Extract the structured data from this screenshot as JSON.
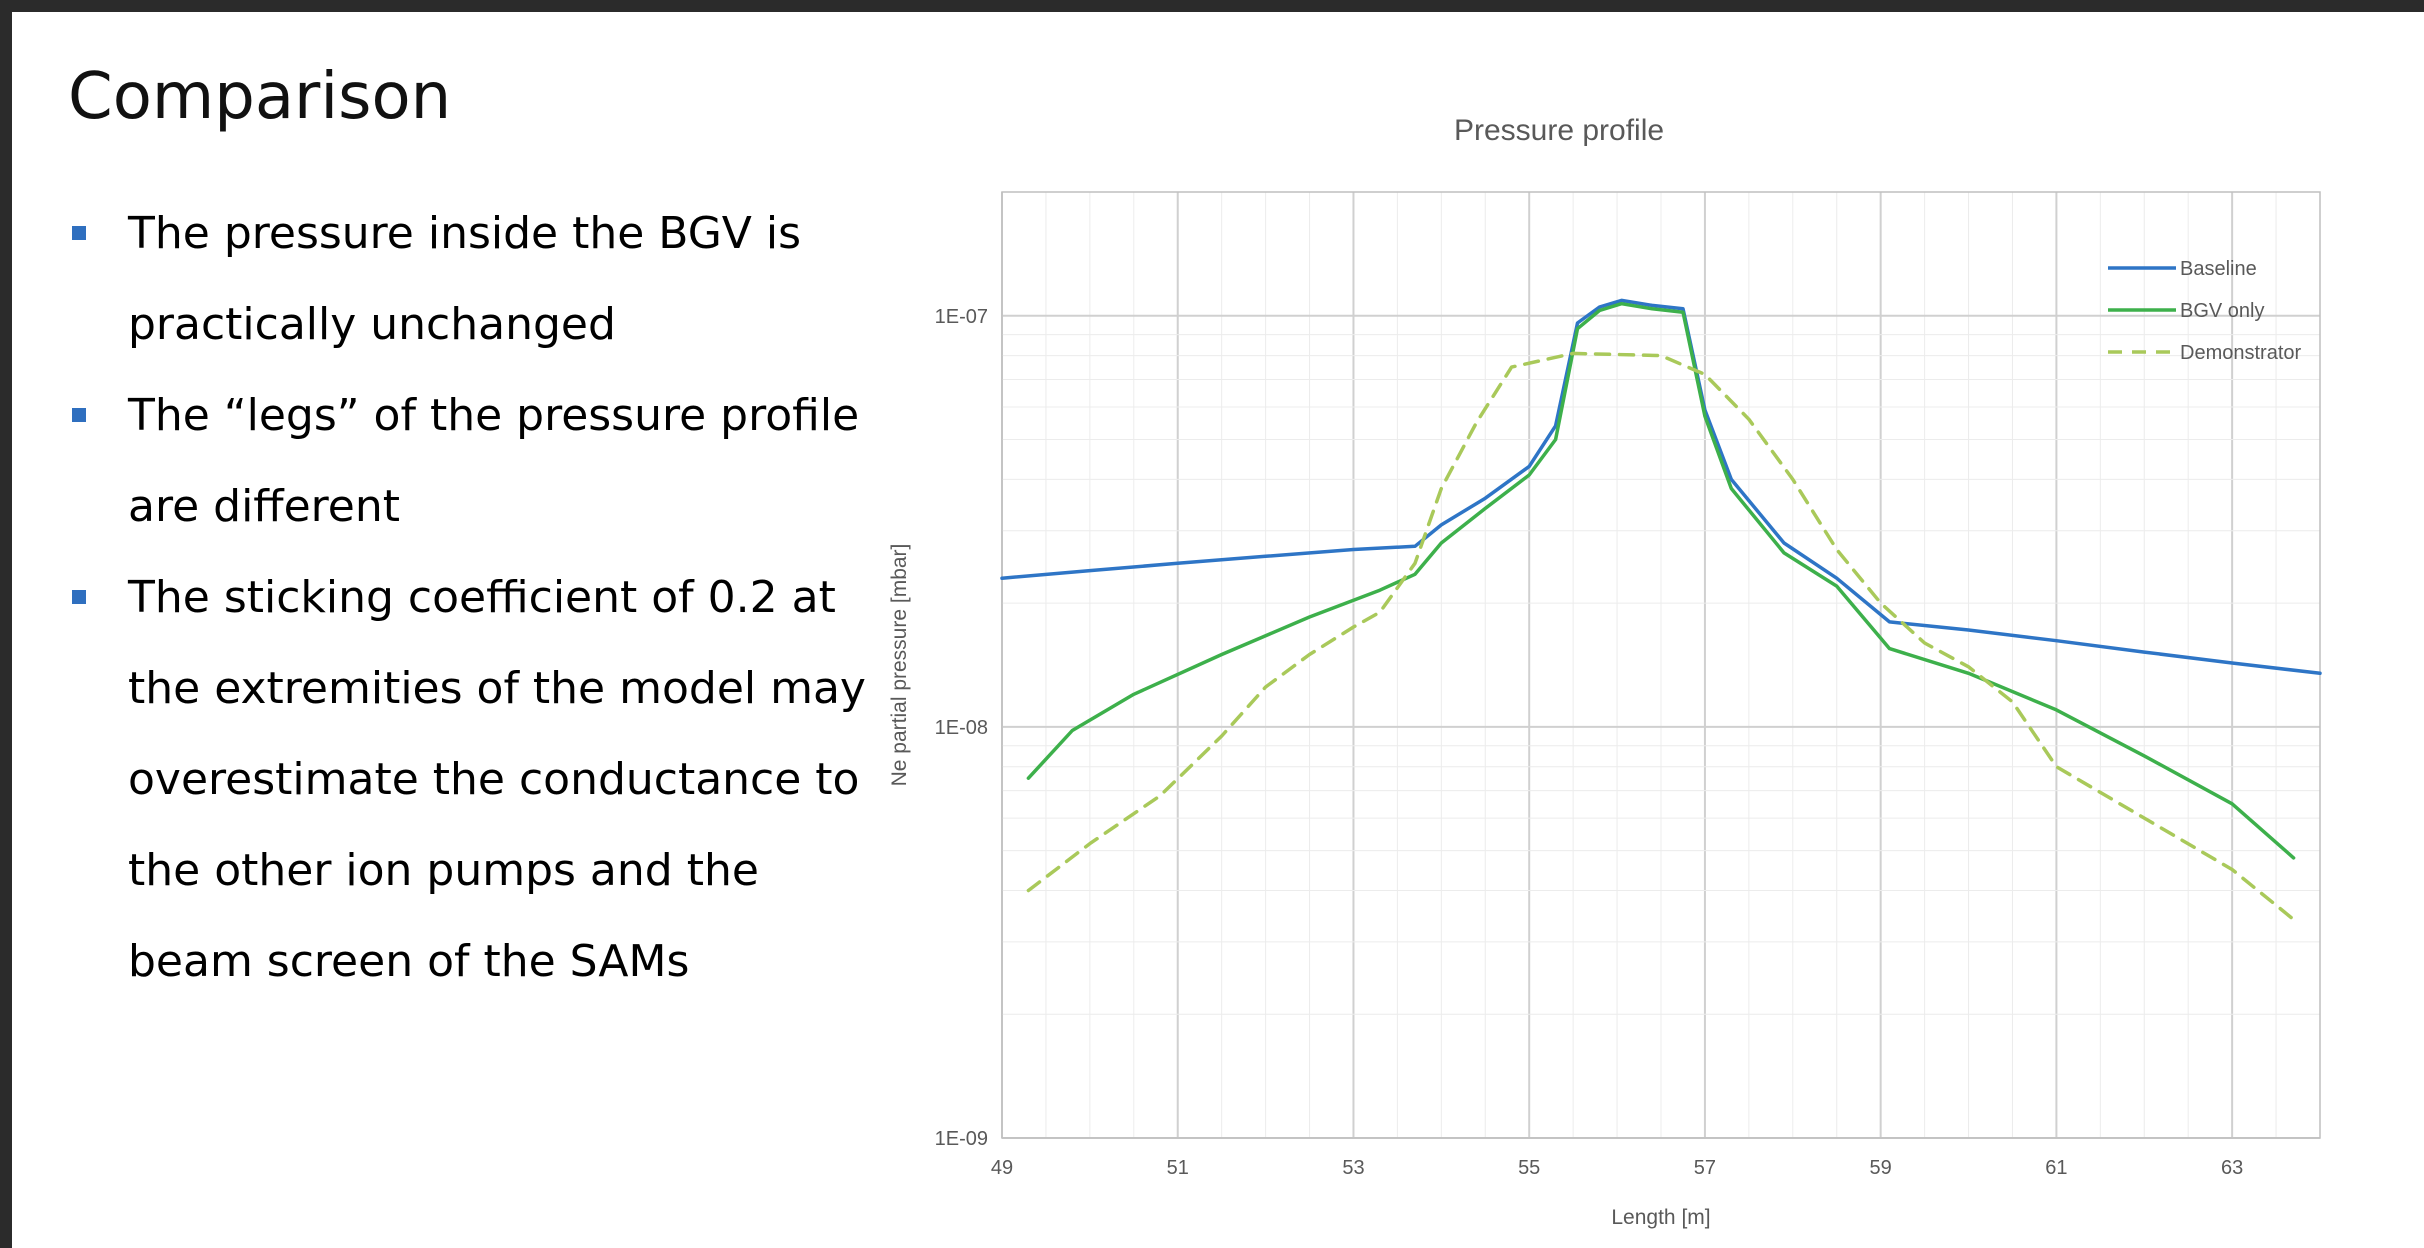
{
  "slide": {
    "title": "Comparison",
    "bullets": [
      "The pressure inside the BGV is practically unchanged",
      "The “legs” of the pressure profile are different",
      "The sticking coefficient of 0.2 at the extremities of the model may overestimate the conductance to the other ion pumps and the beam screen of the SAMs"
    ]
  },
  "colors": {
    "bullet": "#2f6fbf",
    "baseline": "#2e75c6",
    "bgv_only": "#3db04b",
    "demonstrator": "#a9c95a"
  },
  "chart_data": {
    "type": "line",
    "title": "Pressure profile",
    "xlabel": "Length [m]",
    "ylabel": "Ne partial pressure [mbar]",
    "xlim": [
      49,
      64
    ],
    "ylim": [
      1e-09,
      2e-07
    ],
    "yscale": "log",
    "x_ticks": [
      "49",
      "51",
      "53",
      "55",
      "57",
      "59",
      "61",
      "63"
    ],
    "y_ticks": [
      "1E-09",
      "1E-08",
      "1E-07"
    ],
    "grid": true,
    "legend_position": "top-right",
    "series": [
      {
        "name": "Baseline",
        "style": "solid",
        "points": [
          [
            49,
            2.3e-08
          ],
          [
            50,
            2.4e-08
          ],
          [
            51,
            2.5e-08
          ],
          [
            52,
            2.6e-08
          ],
          [
            53,
            2.7e-08
          ],
          [
            53.7,
            2.75e-08
          ],
          [
            54,
            3.1e-08
          ],
          [
            54.5,
            3.6e-08
          ],
          [
            55,
            4.3e-08
          ],
          [
            55.3,
            5.4e-08
          ],
          [
            55.55,
            9.6e-08
          ],
          [
            55.8,
            1.05e-07
          ],
          [
            56.05,
            1.09e-07
          ],
          [
            56.4,
            1.06e-07
          ],
          [
            56.75,
            1.04e-07
          ],
          [
            57,
            5.9e-08
          ],
          [
            57.3,
            4e-08
          ],
          [
            57.9,
            2.8e-08
          ],
          [
            58.5,
            2.3e-08
          ],
          [
            59.1,
            1.8e-08
          ],
          [
            60,
            1.72e-08
          ],
          [
            61,
            1.62e-08
          ],
          [
            62,
            1.52e-08
          ],
          [
            63,
            1.43e-08
          ],
          [
            64,
            1.35e-08
          ]
        ]
      },
      {
        "name": "BGV only",
        "style": "solid",
        "points": [
          [
            49.3,
            7.5e-09
          ],
          [
            49.8,
            9.8e-09
          ],
          [
            50.5,
            1.2e-08
          ],
          [
            51.5,
            1.5e-08
          ],
          [
            52.5,
            1.85e-08
          ],
          [
            53.3,
            2.15e-08
          ],
          [
            53.7,
            2.35e-08
          ],
          [
            54,
            2.8e-08
          ],
          [
            54.5,
            3.4e-08
          ],
          [
            55,
            4.1e-08
          ],
          [
            55.3,
            5e-08
          ],
          [
            55.55,
            9.3e-08
          ],
          [
            55.8,
            1.03e-07
          ],
          [
            56.05,
            1.07e-07
          ],
          [
            56.4,
            1.04e-07
          ],
          [
            56.75,
            1.02e-07
          ],
          [
            57,
            5.7e-08
          ],
          [
            57.3,
            3.8e-08
          ],
          [
            57.9,
            2.65e-08
          ],
          [
            58.5,
            2.2e-08
          ],
          [
            59.1,
            1.55e-08
          ],
          [
            60,
            1.35e-08
          ],
          [
            61,
            1.1e-08
          ],
          [
            62,
            8.5e-09
          ],
          [
            63,
            6.5e-09
          ],
          [
            63.7,
            4.8e-09
          ]
        ]
      },
      {
        "name": "Demonstrator",
        "style": "dashed",
        "points": [
          [
            49.3,
            4e-09
          ],
          [
            50,
            5.2e-09
          ],
          [
            50.8,
            6.8e-09
          ],
          [
            51.5,
            9.5e-09
          ],
          [
            52,
            1.25e-08
          ],
          [
            52.5,
            1.5e-08
          ],
          [
            53,
            1.75e-08
          ],
          [
            53.3,
            1.9e-08
          ],
          [
            53.7,
            2.5e-08
          ],
          [
            54,
            3.8e-08
          ],
          [
            54.4,
            5.5e-08
          ],
          [
            54.8,
            7.5e-08
          ],
          [
            55.5,
            8.1e-08
          ],
          [
            56.5,
            8e-08
          ],
          [
            57,
            7.2e-08
          ],
          [
            57.5,
            5.6e-08
          ],
          [
            58,
            4e-08
          ],
          [
            58.5,
            2.7e-08
          ],
          [
            59,
            2e-08
          ],
          [
            59.5,
            1.6e-08
          ],
          [
            60,
            1.4e-08
          ],
          [
            60.5,
            1.15e-08
          ],
          [
            61,
            8e-09
          ],
          [
            62,
            6e-09
          ],
          [
            63,
            4.5e-09
          ],
          [
            63.7,
            3.4e-09
          ]
        ]
      }
    ]
  }
}
